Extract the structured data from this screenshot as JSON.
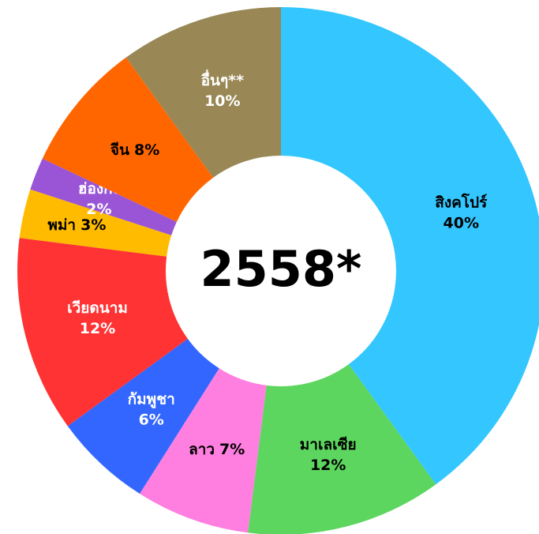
{
  "chart_data": {
    "type": "donut",
    "title": "2558*",
    "categories": [
      "สิงคโปร์",
      "มาเลเซีย",
      "ลาว",
      "กัมพูชา",
      "เวียดนาม",
      "พม่า",
      "ฮ่องกง",
      "จีน",
      "อื่นๆ**"
    ],
    "values": [
      40,
      12,
      7,
      6,
      12,
      3,
      2,
      8,
      10
    ],
    "value_labels": [
      "40%",
      "12%",
      "7%",
      "6%",
      "12%",
      "3%",
      "2%",
      "8%",
      "10%"
    ],
    "colors": [
      "#33c6ff",
      "#5dd65f",
      "#ff7fe0",
      "#3366ff",
      "#ff3333",
      "#ffbb00",
      "#9955d6",
      "#ff6600",
      "#998855"
    ],
    "label_colors": [
      "#000000",
      "#000000",
      "#000000",
      "#ffffff",
      "#ffffff",
      "#000000",
      "#ffffff",
      "#000000",
      "#ffffff"
    ]
  }
}
